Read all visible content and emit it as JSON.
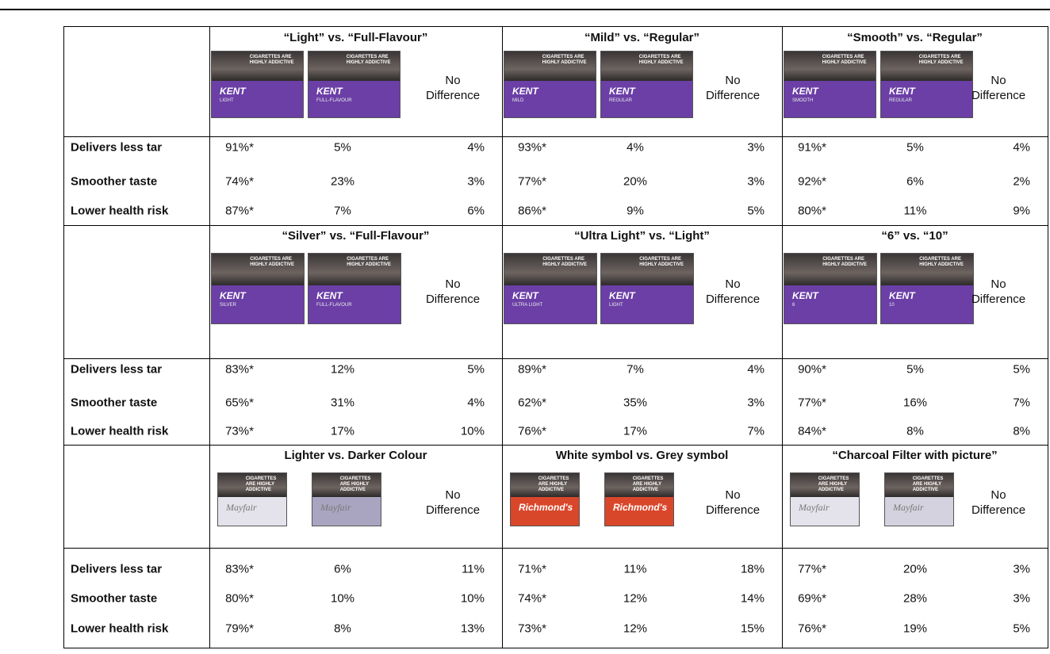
{
  "row_labels": [
    "Delivers less tar",
    "Smoother taste",
    "Lower health risk"
  ],
  "no_difference": "No Difference",
  "pack_warning": "CIGARETTES ARE HIGHLY ADDICTIVE",
  "blocks": [
    {
      "comparisons": [
        {
          "title": "“Light” vs. “Full-Flavour”",
          "packs": [
            {
              "brand": "KENT",
              "variant": "LIGHT",
              "color": "#6b3fa6"
            },
            {
              "brand": "KENT",
              "variant": "FULL-FLAVOUR",
              "color": "#6b3fa6"
            }
          ],
          "rows": [
            [
              "91%*",
              "5%",
              "4%"
            ],
            [
              "74%*",
              "23%",
              "3%"
            ],
            [
              "87%*",
              "7%",
              "6%"
            ]
          ]
        },
        {
          "title": "“Mild” vs. “Regular”",
          "packs": [
            {
              "brand": "KENT",
              "variant": "MILD",
              "color": "#6b3fa6"
            },
            {
              "brand": "KENT",
              "variant": "REGULAR",
              "color": "#6b3fa6"
            }
          ],
          "rows": [
            [
              "93%*",
              "4%",
              "3%"
            ],
            [
              "77%*",
              "20%",
              "3%"
            ],
            [
              "86%*",
              "9%",
              "5%"
            ]
          ]
        },
        {
          "title": "“Smooth” vs. “Regular”",
          "packs": [
            {
              "brand": "KENT",
              "variant": "SMOOTH",
              "color": "#6b3fa6"
            },
            {
              "brand": "KENT",
              "variant": "REGULAR",
              "color": "#6b3fa6"
            }
          ],
          "rows": [
            [
              "91%*",
              "5%",
              "4%"
            ],
            [
              "92%*",
              "6%",
              "2%"
            ],
            [
              "80%*",
              "11%",
              "9%"
            ]
          ]
        }
      ]
    },
    {
      "comparisons": [
        {
          "title": "“Silver” vs. “Full-Flavour”",
          "packs": [
            {
              "brand": "KENT",
              "variant": "SILVER",
              "color": "#6b3fa6"
            },
            {
              "brand": "KENT",
              "variant": "FULL-FLAVOUR",
              "color": "#6b3fa6"
            }
          ],
          "rows": [
            [
              "83%*",
              "12%",
              "5%"
            ],
            [
              "65%*",
              "31%",
              "4%"
            ],
            [
              "73%*",
              "17%",
              "10%"
            ]
          ]
        },
        {
          "title": "“Ultra Light” vs. “Light”",
          "packs": [
            {
              "brand": "KENT",
              "variant": "ULTRA LIGHT",
              "color": "#6b3fa6"
            },
            {
              "brand": "KENT",
              "variant": "LIGHT",
              "color": "#6b3fa6"
            }
          ],
          "rows": [
            [
              "89%*",
              "7%",
              "4%"
            ],
            [
              "62%*",
              "35%",
              "3%"
            ],
            [
              "76%*",
              "17%",
              "7%"
            ]
          ]
        },
        {
          "title": "“6” vs. “10”",
          "packs": [
            {
              "brand": "KENT",
              "variant": "6",
              "color": "#6b3fa6"
            },
            {
              "brand": "KENT",
              "variant": "10",
              "color": "#6b3fa6"
            }
          ],
          "rows": [
            [
              "90%*",
              "5%",
              "5%"
            ],
            [
              "77%*",
              "16%",
              "7%"
            ],
            [
              "84%*",
              "8%",
              "8%"
            ]
          ]
        }
      ]
    },
    {
      "comparisons": [
        {
          "title": "Lighter vs. Darker Colour",
          "packs": [
            {
              "brand": "Mayfair",
              "color": "#e4e2ea"
            },
            {
              "brand": "Mayfair",
              "color": "#a9a5c0"
            }
          ],
          "rows": [
            [
              "83%*",
              "6%",
              "11%"
            ],
            [
              "80%*",
              "10%",
              "10%"
            ],
            [
              "79%*",
              "8%",
              "13%"
            ]
          ]
        },
        {
          "title": "White symbol vs. Grey symbol",
          "packs": [
            {
              "brand": "Richmond's",
              "color": "#d9472b"
            },
            {
              "brand": "Richmond's",
              "color": "#d9472b"
            }
          ],
          "rows": [
            [
              "71%*",
              "11%",
              "18%"
            ],
            [
              "74%*",
              "12%",
              "14%"
            ],
            [
              "73%*",
              "12%",
              "15%"
            ]
          ]
        },
        {
          "title": "“Charcoal Filter with picture”",
          "packs": [
            {
              "brand": "Mayfair",
              "color": "#e4e2ea"
            },
            {
              "brand": "Mayfair",
              "color": "#d4d2de"
            }
          ],
          "rows": [
            [
              "77%*",
              "20%",
              "3%"
            ],
            [
              "69%*",
              "28%",
              "3%"
            ],
            [
              "76%*",
              "19%",
              "5%"
            ]
          ]
        }
      ]
    }
  ]
}
